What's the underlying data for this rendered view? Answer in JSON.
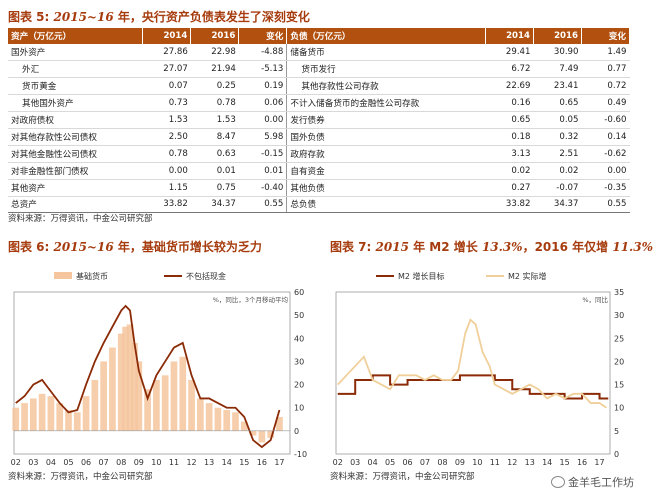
{
  "fig5": {
    "label": "图表 5:",
    "year_text": "2015~16",
    "rest": " 年，央行资产负债表发生了深刻变化",
    "headers": {
      "assets": "资产（万亿元）",
      "y2014": "2014",
      "y2016": "2016",
      "change": "变化",
      "liab": "负债（万亿元）"
    },
    "asset_rows": [
      {
        "label": "国外资产",
        "v2014": "27.86",
        "v2016": "22.98",
        "chg": "-4.88",
        "indent": false
      },
      {
        "label": "外汇",
        "v2014": "27.07",
        "v2016": "21.94",
        "chg": "-5.13",
        "indent": true
      },
      {
        "label": "货币黄金",
        "v2014": "0.07",
        "v2016": "0.25",
        "chg": "0.19",
        "indent": true
      },
      {
        "label": "其他国外资产",
        "v2014": "0.73",
        "v2016": "0.78",
        "chg": "0.06",
        "indent": true
      },
      {
        "label": "对政府债权",
        "v2014": "1.53",
        "v2016": "1.53",
        "chg": "0.00",
        "indent": false
      },
      {
        "label": "对其他存款性公司债权",
        "v2014": "2.50",
        "v2016": "8.47",
        "chg": "5.98",
        "indent": false
      },
      {
        "label": "对其他金融性公司债权",
        "v2014": "0.78",
        "v2016": "0.63",
        "chg": "-0.15",
        "indent": false
      },
      {
        "label": "对非金融性部门债权",
        "v2014": "0.00",
        "v2016": "0.01",
        "chg": "0.01",
        "indent": false
      },
      {
        "label": "其他资产",
        "v2014": "1.15",
        "v2016": "0.75",
        "chg": "-0.40",
        "indent": false
      }
    ],
    "liab_rows": [
      {
        "label": "储备货币",
        "v2014": "29.41",
        "v2016": "30.90",
        "chg": "1.49",
        "indent": false
      },
      {
        "label": "货币发行",
        "v2014": "6.72",
        "v2016": "7.49",
        "chg": "0.77",
        "indent": true
      },
      {
        "label": "其他存款性公司存款",
        "v2014": "22.69",
        "v2016": "23.41",
        "chg": "0.72",
        "indent": true
      },
      {
        "label": "不计入储备货币的金融性公司存款",
        "v2014": "0.16",
        "v2016": "0.65",
        "chg": "0.49",
        "indent": false
      },
      {
        "label": "发行债券",
        "v2014": "0.65",
        "v2016": "0.05",
        "chg": "-0.60",
        "indent": false
      },
      {
        "label": "国外负债",
        "v2014": "0.18",
        "v2016": "0.32",
        "chg": "0.14",
        "indent": false
      },
      {
        "label": "政府存款",
        "v2014": "3.13",
        "v2016": "2.51",
        "chg": "-0.62",
        "indent": false
      },
      {
        "label": "自有资金",
        "v2014": "0.02",
        "v2016": "0.02",
        "chg": "0.00",
        "indent": false
      },
      {
        "label": "其他负债",
        "v2014": "0.27",
        "v2016": "-0.07",
        "chg": "-0.35",
        "indent": false
      }
    ],
    "total_assets": {
      "label": "总资产",
      "v2014": "33.82",
      "v2016": "34.37",
      "chg": "0.55"
    },
    "total_liab": {
      "label": "总负债",
      "v2014": "33.82",
      "v2016": "34.37",
      "chg": "0.55"
    },
    "source": "资料来源：万得资讯，中金公司研究部"
  },
  "fig6": {
    "label": "图表 6:",
    "year_text": "2015~16",
    "rest": " 年，基础货币增长较为乏力",
    "source": "资料来源：万得资讯，中金公司研究部"
  },
  "fig7": {
    "label": "图表 7:",
    "year_text": "2015",
    "rest1": " 年 M2 增长 ",
    "v1": "13.3%",
    "rest2": "，2016 年仅增 ",
    "v2": "11.3%",
    "source": "资料来源：万得资讯，中金公司研究部"
  },
  "watermark": "金羊毛工作坊",
  "colors": {
    "accent": "#b2510f",
    "title": "#a63c0e",
    "bar": "#f5c59e",
    "dark_line": "#8b2a06",
    "light_line": "#f0cf9a"
  },
  "chart_data": [
    {
      "type": "bar",
      "title": "",
      "unit_label": "%，同比，3个月移动平均",
      "x_ticks": [
        "02",
        "03",
        "04",
        "05",
        "06",
        "07",
        "08",
        "09",
        "10",
        "11",
        "12",
        "13",
        "14",
        "15",
        "16",
        "17"
      ],
      "ylim": [
        -10,
        60
      ],
      "y_ticks": [
        -10,
        0,
        10,
        20,
        30,
        40,
        50,
        60
      ],
      "series": [
        {
          "name": "基础货币",
          "kind": "bar",
          "x": [
            2002,
            2002.5,
            2003,
            2003.5,
            2004,
            2004.5,
            2005,
            2005.5,
            2006,
            2006.5,
            2007,
            2007.5,
            2008,
            2008.25,
            2008.5,
            2008.75,
            2009,
            2009.5,
            2010,
            2010.5,
            2011,
            2011.5,
            2012,
            2012.5,
            2013,
            2013.5,
            2014,
            2014.5,
            2015,
            2015.5,
            2016,
            2016.5,
            2017
          ],
          "values": [
            10,
            12,
            14,
            16,
            15,
            12,
            9,
            8,
            15,
            22,
            30,
            36,
            42,
            45,
            46,
            38,
            30,
            18,
            22,
            24,
            30,
            32,
            22,
            14,
            12,
            10,
            9,
            8,
            4,
            -2,
            -5,
            -3,
            6
          ]
        },
        {
          "name": "不包括现金",
          "kind": "line",
          "x": [
            2002,
            2002.5,
            2003,
            2003.5,
            2004,
            2004.5,
            2005,
            2005.5,
            2006,
            2006.5,
            2007,
            2007.5,
            2008,
            2008.25,
            2008.5,
            2008.75,
            2009,
            2009.5,
            2010,
            2010.5,
            2011,
            2011.5,
            2012,
            2012.5,
            2013,
            2013.5,
            2014,
            2014.5,
            2015,
            2015.5,
            2016,
            2016.5,
            2017
          ],
          "values": [
            12,
            15,
            20,
            22,
            17,
            12,
            8,
            9,
            20,
            30,
            38,
            45,
            52,
            54,
            52,
            38,
            26,
            14,
            24,
            30,
            36,
            38,
            24,
            14,
            14,
            12,
            10,
            10,
            6,
            -4,
            -7,
            -4,
            9
          ]
        }
      ]
    },
    {
      "type": "line",
      "title": "",
      "unit_label": "%，同比",
      "x_ticks": [
        "02",
        "03",
        "04",
        "05",
        "06",
        "07",
        "08",
        "09",
        "10",
        "11",
        "12",
        "13",
        "14",
        "15",
        "16",
        "17"
      ],
      "ylim": [
        0,
        35
      ],
      "y_ticks": [
        0,
        5,
        10,
        15,
        20,
        25,
        30,
        35
      ],
      "series": [
        {
          "name": "M2 增长目标",
          "kind": "step",
          "x": [
            2002,
            2003,
            2004,
            2005,
            2006,
            2007,
            2008,
            2009,
            2010,
            2011,
            2012,
            2013,
            2014,
            2015,
            2016,
            2017,
            2017.5
          ],
          "values": [
            13,
            16,
            17,
            15,
            16,
            16,
            16,
            17,
            17,
            16,
            14,
            13,
            13,
            12,
            13,
            12,
            12
          ]
        },
        {
          "name": "M2 实际增",
          "kind": "line",
          "x": [
            2002,
            2002.5,
            2003,
            2003.5,
            2004,
            2004.5,
            2005,
            2005.5,
            2006,
            2006.5,
            2007,
            2007.5,
            2008,
            2008.5,
            2008.9,
            2009.3,
            2009.6,
            2009.9,
            2010.3,
            2010.7,
            2011,
            2011.5,
            2012,
            2012.5,
            2013,
            2013.5,
            2014,
            2014.5,
            2015,
            2015.5,
            2016,
            2016.5,
            2017,
            2017.4
          ],
          "values": [
            15,
            17,
            19,
            21,
            16,
            15,
            14,
            17,
            17,
            17,
            16,
            17,
            16,
            16,
            18,
            26,
            29,
            28,
            22,
            19,
            15,
            14,
            13,
            14,
            15,
            14,
            12,
            13,
            12,
            13,
            13,
            11,
            11,
            10
          ]
        }
      ]
    }
  ]
}
